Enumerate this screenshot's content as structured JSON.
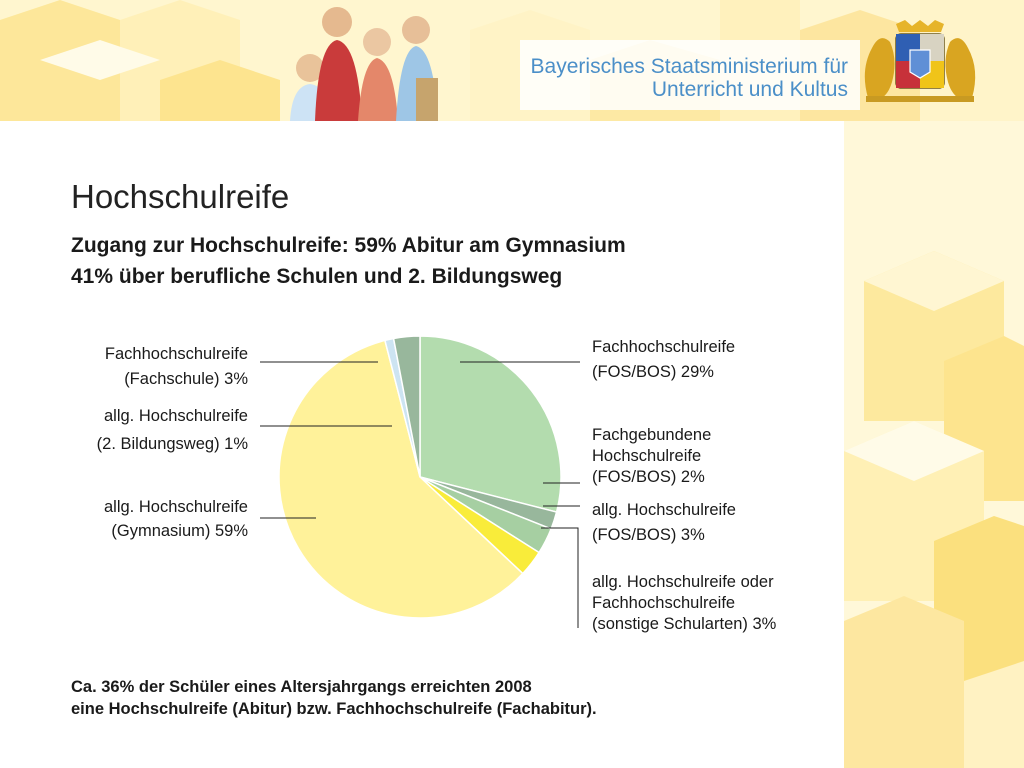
{
  "header": {
    "ministry_line1": "Bayerisches Staatsministerium für",
    "ministry_line2": "Unterricht und Kultus"
  },
  "slide": {
    "title": "Hochschulreife",
    "subtitle_line1": "Zugang zur Hochschulreife: 59% Abitur am Gymnasium",
    "subtitle_line2": "41% über berufliche Schulen und 2. Bildungsweg",
    "footnote_line1": "Ca. 36% der Schüler eines Altersjahrgangs erreichten 2008",
    "footnote_line2": "eine Hochschulreife (Abitur) bzw. Fachhochschulreife (Fachabitur)."
  },
  "colors": {
    "brand_blue": "#4b8fc8",
    "deco_yellow": "#fce98a",
    "slice_gymnasium": "#fff29a",
    "slice_green_light": "#b3dcae",
    "slice_green_mid": "#a6cfa2",
    "slice_green_dark": "#98b79c",
    "slice_yellow_strong": "#f9ec3a",
    "slice_light_blue": "#cde4f2"
  },
  "chart_data": {
    "type": "pie",
    "start_angle_deg": 90,
    "direction": "clockwise",
    "slices": [
      {
        "id": "fh-fos-bos",
        "value": 29,
        "color": "#b3dcae",
        "label_lines": [
          "Fachhochschulreife",
          "(FOS/BOS) 29%"
        ]
      },
      {
        "id": "fachgebunden",
        "value": 2,
        "color": "#98b79c",
        "label_lines": [
          "Fachgebundene",
          "Hochschulreife",
          "(FOS/BOS) 2%"
        ]
      },
      {
        "id": "allg-fos-bos",
        "value": 3,
        "color": "#a6cfa2",
        "label_lines": [
          "allg. Hochschulreife",
          "(FOS/BOS) 3%"
        ]
      },
      {
        "id": "sonstige",
        "value": 3,
        "color": "#f9ec3a",
        "label_lines": [
          "allg. Hochschulreife oder",
          "Fachhochschulreife",
          "(sonstige Schularten) 3%"
        ]
      },
      {
        "id": "gymnasium",
        "value": 59,
        "color": "#fff29a",
        "label_lines": [
          "allg. Hochschulreife",
          "(Gymnasium) 59%"
        ]
      },
      {
        "id": "zweiter-bildungsweg",
        "value": 1,
        "color": "#cde4f2",
        "label_lines": [
          "allg. Hochschulreife",
          "(2. Bildungsweg) 1%"
        ]
      },
      {
        "id": "fachschule",
        "value": 3,
        "color": "#98b79c",
        "label_lines": [
          "Fachhochschulreife",
          "(Fachschule) 3%"
        ]
      }
    ]
  }
}
